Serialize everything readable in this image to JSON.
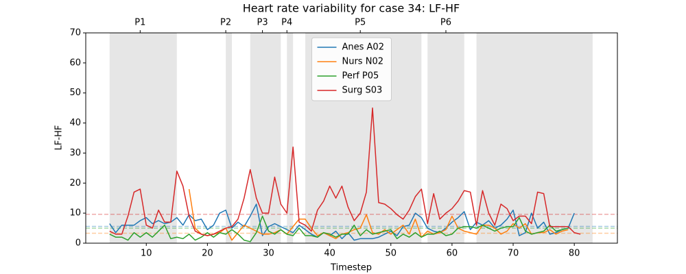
{
  "chart_data": {
    "type": "line",
    "title": "Heart rate variability for case 34: LF-HF",
    "x_label": "Timestep",
    "y_label": "LF-HF",
    "x": [
      4,
      5,
      6,
      7,
      8,
      9,
      10,
      11,
      12,
      13,
      14,
      15,
      16,
      17,
      18,
      19,
      20,
      21,
      22,
      23,
      24,
      25,
      26,
      27,
      28,
      29,
      30,
      31,
      32,
      33,
      34,
      35,
      36,
      37,
      38,
      39,
      40,
      41,
      42,
      43,
      44,
      45,
      46,
      47,
      48,
      49,
      50,
      51,
      52,
      53,
      54,
      55,
      56,
      57,
      58,
      59,
      60,
      61,
      62,
      63,
      64,
      65,
      66,
      67,
      68,
      69,
      70,
      71,
      72,
      73,
      74,
      75,
      76,
      77,
      78,
      79,
      80,
      81
    ],
    "series": [
      {
        "name": "Anes A02",
        "color": "#1f77b4",
        "values": [
          6.5,
          3.5,
          6,
          6,
          6,
          7.5,
          8.5,
          6.5,
          7.5,
          6.5,
          7,
          8.5,
          6,
          9.5,
          7.5,
          8,
          4.5,
          6,
          10,
          11,
          5,
          7,
          5.5,
          9,
          13,
          2.5,
          5.5,
          6.5,
          5.5,
          4.5,
          3.5,
          6,
          4.5,
          3,
          2,
          3.5,
          2.5,
          4,
          1.5,
          3.5,
          1,
          1.5,
          1.5,
          1.5,
          2,
          3,
          4,
          2.5,
          5.5,
          6,
          10,
          8.5,
          5,
          4,
          3.5,
          5,
          7,
          8.5,
          10.5,
          4.5,
          7,
          6,
          7.5,
          5,
          6,
          8,
          11,
          2.5,
          3.5,
          10,
          5,
          7,
          3,
          3.5,
          4.5,
          5,
          10,
          null
        ]
      },
      {
        "name": "Nurs N02",
        "color": "#ff7f0e",
        "values": [
          null,
          null,
          null,
          null,
          null,
          null,
          null,
          null,
          null,
          null,
          null,
          null,
          null,
          18,
          5,
          3,
          2.5,
          3,
          3.5,
          5,
          1,
          3.5,
          6,
          5,
          4,
          3,
          3,
          3.5,
          4.5,
          3,
          5.5,
          8,
          8,
          5,
          2.5,
          3.5,
          2.5,
          1.5,
          3,
          3.5,
          4.5,
          5,
          9.5,
          3.5,
          3,
          4.5,
          3,
          4.5,
          6,
          3,
          8,
          2,
          4,
          3,
          3.5,
          4.5,
          9,
          5,
          4,
          3.5,
          3,
          6,
          6,
          5,
          3,
          4,
          6.5,
          5,
          6.5,
          3,
          3.5,
          3.5,
          4.5,
          3,
          4,
          4.5,
          null,
          null
        ]
      },
      {
        "name": "Perf P05",
        "color": "#2ca02c",
        "values": [
          3,
          2,
          2,
          1,
          3.5,
          2,
          3.5,
          2,
          4,
          6,
          1.5,
          2,
          1.5,
          3,
          1,
          2,
          3.5,
          2,
          3.5,
          3,
          4.5,
          3,
          1,
          0.5,
          3.5,
          9,
          4,
          3,
          4.5,
          3,
          2.5,
          5,
          2.5,
          2.5,
          2,
          3.5,
          3,
          2,
          3,
          3,
          6,
          2.5,
          4.5,
          3,
          3.5,
          4,
          4.5,
          1.5,
          3,
          2,
          3.5,
          2,
          3,
          3,
          4,
          2.5,
          3,
          5,
          5.5,
          5.5,
          5,
          6,
          5,
          4,
          5,
          5.5,
          5.5,
          8.5,
          4,
          3,
          3.5,
          4,
          6,
          4,
          4.5,
          5,
          null,
          null
        ]
      },
      {
        "name": "Surg S03",
        "color": "#d62728",
        "values": [
          4,
          3,
          3,
          9,
          17,
          18,
          6,
          5,
          11,
          7,
          7,
          24,
          19,
          9,
          4,
          3,
          2.5,
          3,
          4,
          5,
          5.5,
          8,
          15,
          24.5,
          15,
          10,
          10,
          22,
          13,
          10,
          32,
          7,
          6,
          4,
          11,
          14,
          19,
          15,
          19,
          12,
          7.5,
          10,
          17,
          45,
          13.5,
          13,
          11.5,
          9.5,
          8,
          11,
          15.5,
          18,
          6.5,
          16.5,
          8,
          10,
          11.5,
          14,
          17.5,
          17,
          6,
          17.5,
          10,
          6,
          13,
          11.5,
          7.5,
          9,
          9,
          6.5,
          17,
          16.5,
          5.5,
          5.5,
          5.5,
          5.5,
          3.5,
          3
        ]
      }
    ],
    "reference_lines": [
      {
        "value": 9.6,
        "color": "#d62728"
      },
      {
        "value": 5.6,
        "color": "#1f77b4"
      },
      {
        "value": 5.0,
        "color": "#2ca02c"
      },
      {
        "value": 3.3,
        "color": "#ff7f0e"
      }
    ],
    "shaded_spans": [
      [
        4,
        15
      ],
      [
        23,
        24
      ],
      [
        27,
        32
      ],
      [
        33,
        34
      ],
      [
        36,
        55
      ],
      [
        56,
        62
      ],
      [
        64,
        77
      ],
      [
        77,
        83
      ]
    ],
    "top_ticks": [
      {
        "value": 9,
        "label": "P1"
      },
      {
        "value": 23,
        "label": "P2"
      },
      {
        "value": 29,
        "label": "P3"
      },
      {
        "value": 33,
        "label": "P4"
      },
      {
        "value": 45,
        "label": "P5"
      },
      {
        "value": 59,
        "label": "P6"
      }
    ],
    "xlim": [
      0.1,
      87.05
    ],
    "xticks": [
      10,
      20,
      30,
      40,
      50,
      60,
      70,
      80
    ],
    "ylim": [
      0,
      70
    ],
    "yticks": [
      0,
      10,
      20,
      30,
      40,
      50,
      60,
      70
    ],
    "legend": "upper center"
  }
}
